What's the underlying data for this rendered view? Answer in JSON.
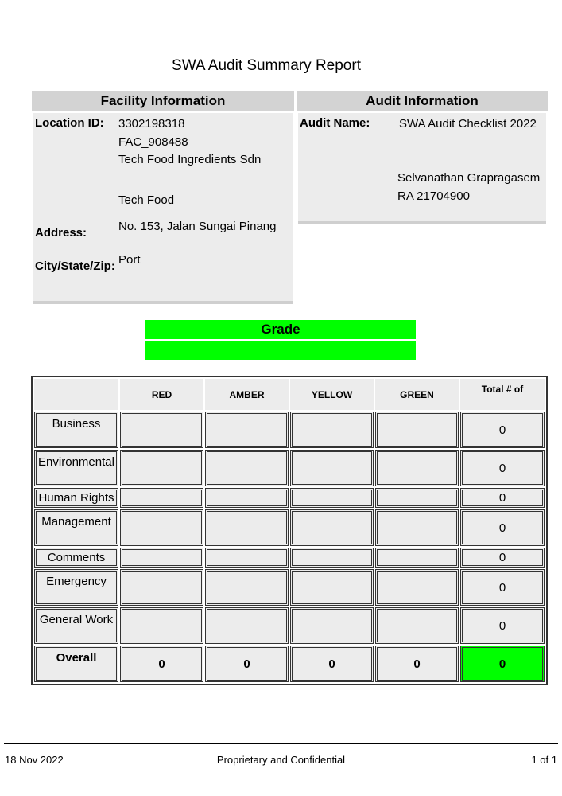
{
  "title": "SWA Audit Summary Report",
  "facility": {
    "header": "Facility Information",
    "location_label": "Location ID:",
    "location_id": "3302198318",
    "facility_code": "FAC_908488",
    "name": "Tech Food Ingredients Sdn",
    "short_name": "Tech Food",
    "address_label": "Address:",
    "address": "No. 153, Jalan Sungai Pinang",
    "city_label": "City/State/Zip:",
    "city": "Port"
  },
  "audit": {
    "header": "Audit Information",
    "name_label": "Audit Name:",
    "name": "SWA Audit Checklist 2022",
    "auditor": "Selvanathan Grapragasem",
    "auditor_id": "RA 21704900"
  },
  "grade": {
    "header": "Grade",
    "value": ""
  },
  "table": {
    "columns": [
      "",
      "RED",
      "AMBER",
      "YELLOW",
      "GREEN",
      "Total # of"
    ],
    "rows": [
      {
        "label": "Business",
        "total": "0"
      },
      {
        "label": "Environmental",
        "total": "0"
      },
      {
        "label": "Human Rights",
        "total": "0"
      },
      {
        "label": "Management",
        "total": "0"
      },
      {
        "label": "Comments",
        "total": "0"
      },
      {
        "label": "Emergency",
        "total": "0"
      },
      {
        "label": "General Work",
        "total": "0"
      }
    ],
    "overall": {
      "label": "Overall",
      "red": "0",
      "amber": "0",
      "yellow": "0",
      "green": "0",
      "total": "0",
      "total_color": "#00ff00"
    }
  },
  "footer": {
    "date": "18 Nov 2022",
    "center": "Proprietary and Confidential",
    "page": "1 of 1"
  }
}
